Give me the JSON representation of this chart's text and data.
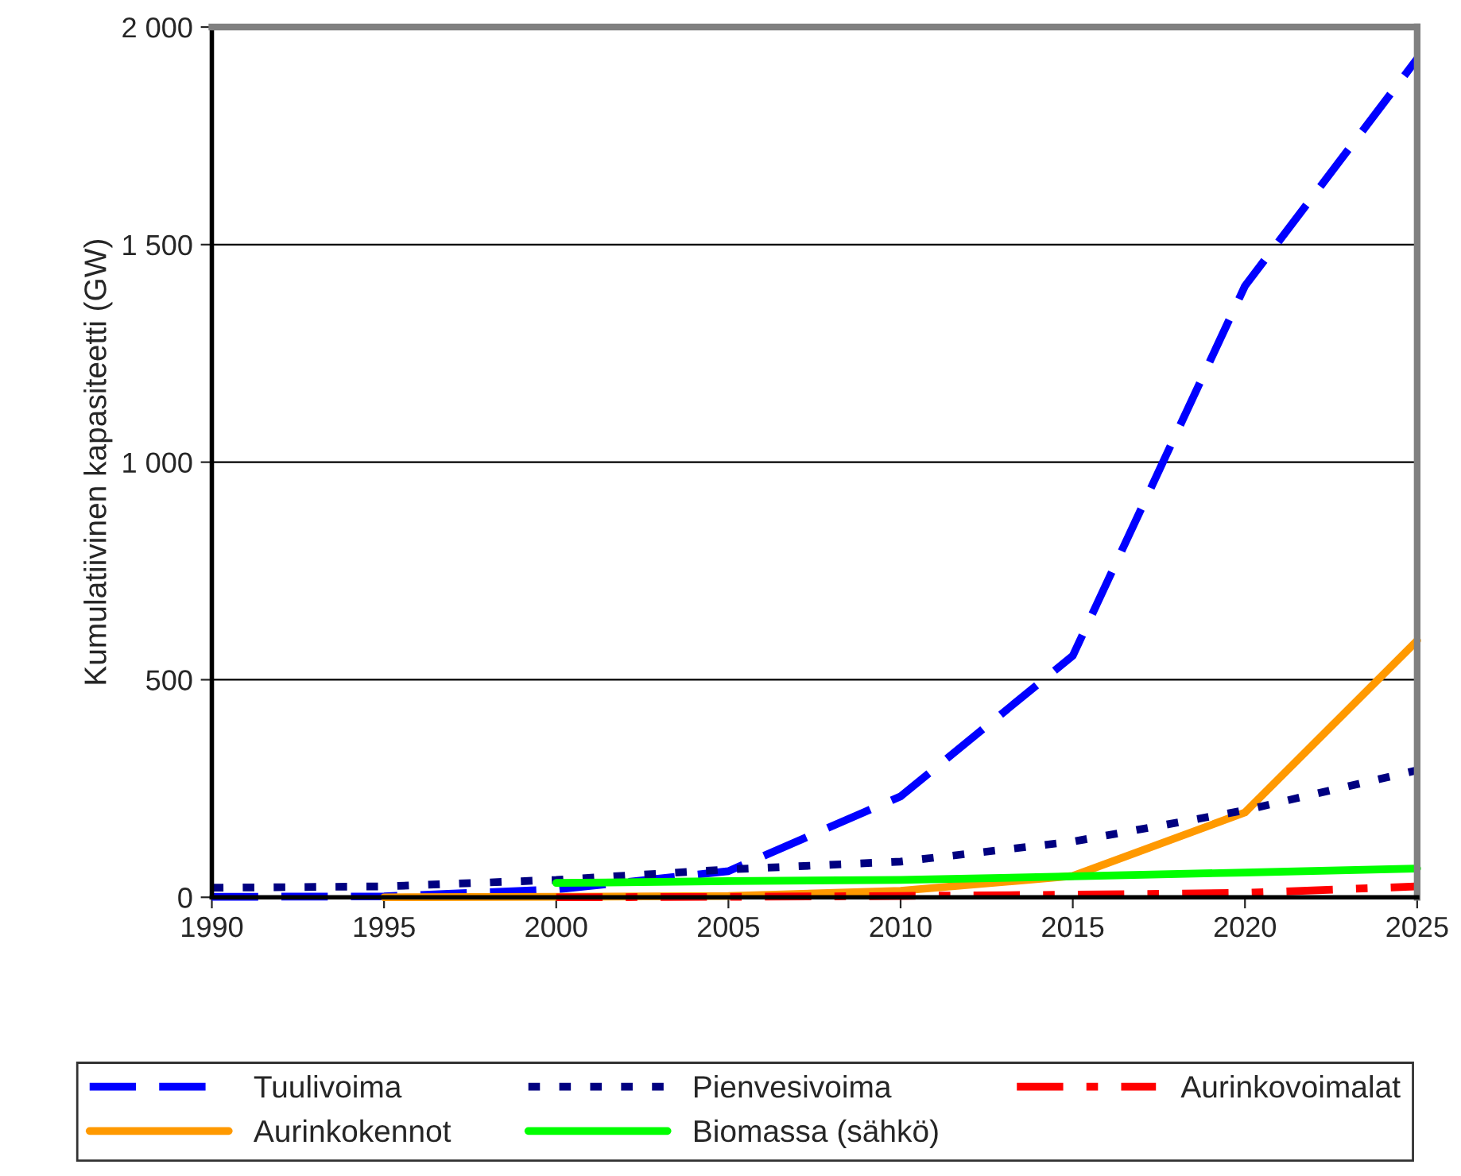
{
  "chart_data": {
    "type": "line",
    "ylabel": "Kumulatiivinen kapasiteetti (GW)",
    "x": [
      1990,
      1995,
      2000,
      2005,
      2010,
      2015,
      2020,
      2025
    ],
    "xlim": [
      1990,
      2025
    ],
    "xticks": [
      1990,
      1995,
      2000,
      2005,
      2010,
      2015,
      2020,
      2025
    ],
    "ylim": [
      0,
      2000
    ],
    "yticks": [
      0,
      500,
      {
        "value": 1000,
        "label": "1 000"
      },
      {
        "value": 1500,
        "label": "1 500"
      },
      {
        "value": 2000,
        "label": "2 000"
      }
    ],
    "grid": "y",
    "legend": "bottom",
    "marker": "none",
    "series": [
      {
        "name": "Tuulivoima",
        "color": "#0000ff",
        "line_style": "dashed",
        "values": [
          1,
          2,
          18,
          60,
          232,
          555,
          1405,
          1927
        ]
      },
      {
        "name": "Aurinkokennot",
        "color": "#ff9900",
        "line_style": "solid",
        "values": [
          null,
          0,
          1,
          3,
          15,
          49,
          195,
          590
        ]
      },
      {
        "name": "Pienvesivoima",
        "color": "#000080",
        "line_style": "dotted",
        "values": [
          22,
          25,
          40,
          64,
          82,
          128,
          200,
          292
        ]
      },
      {
        "name": "Biomassa (sähkö)",
        "color": "#00ff00",
        "line_style": "solid",
        "values": [
          null,
          null,
          33,
          37,
          40,
          48,
          57,
          66
        ]
      },
      {
        "name": "Aurinkovoimalat",
        "color": "#ff0000",
        "line_style": "dashdot",
        "values": [
          null,
          null,
          0,
          1,
          3,
          6,
          10,
          25
        ]
      }
    ]
  }
}
